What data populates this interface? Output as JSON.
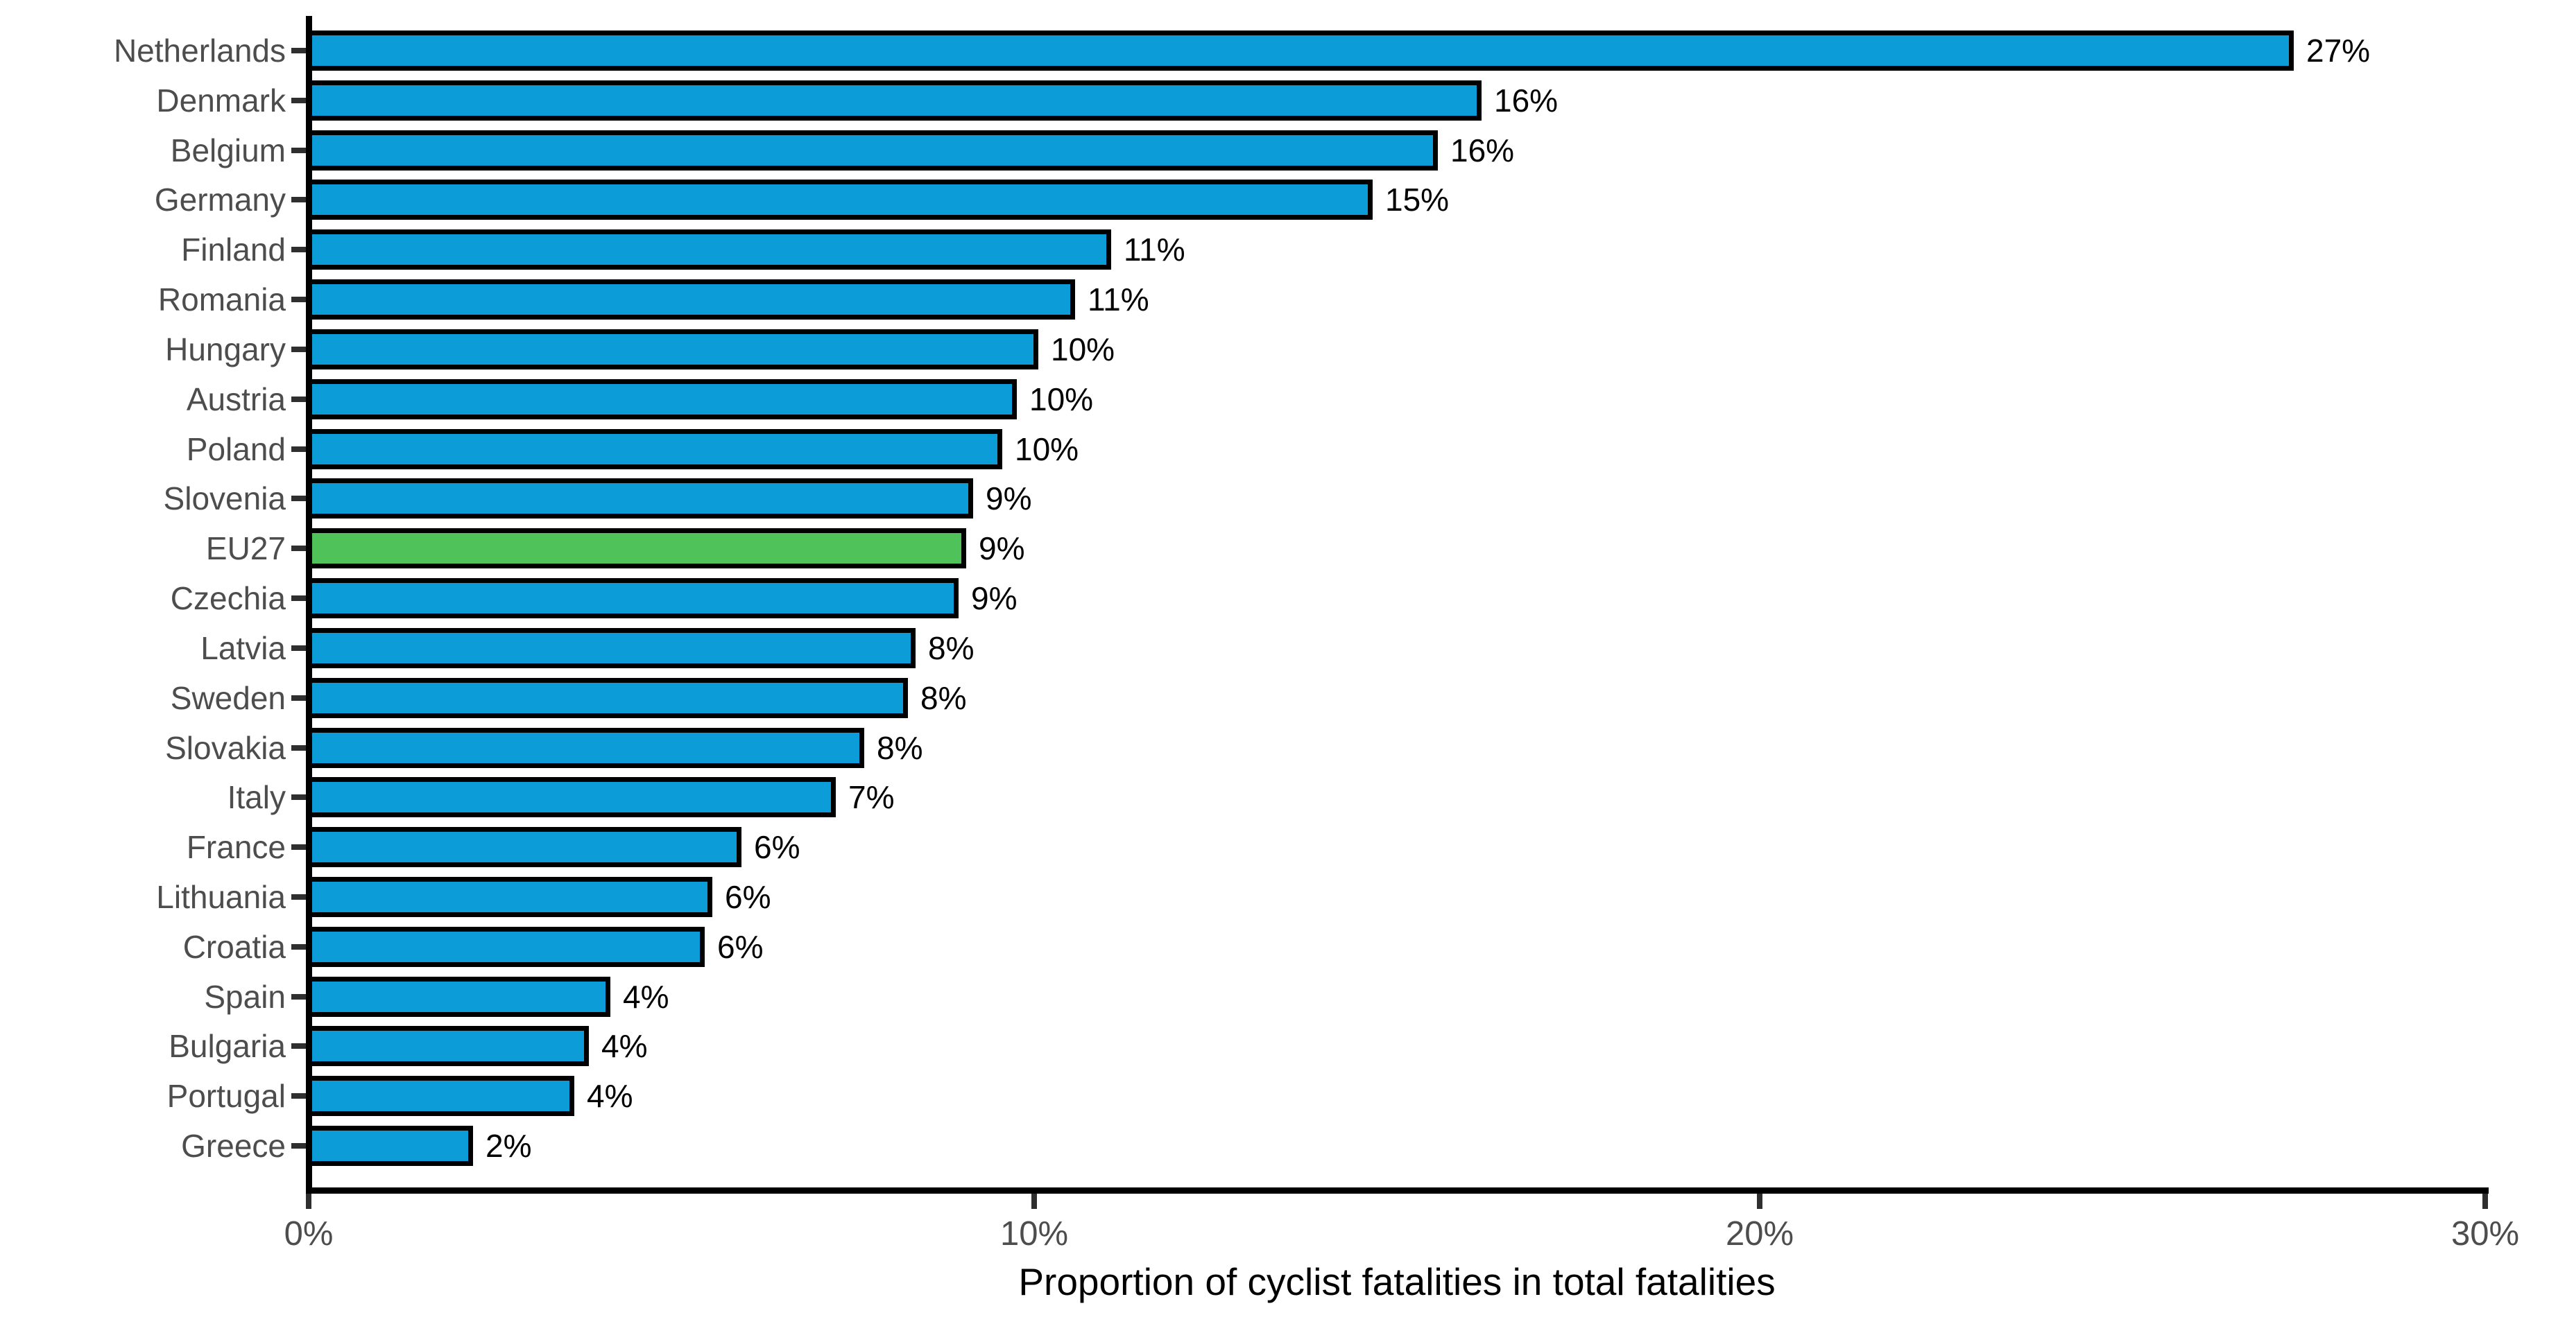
{
  "chart_data": {
    "type": "bar",
    "orientation": "horizontal",
    "title": "",
    "xlabel": "Proportion of cyclist fatalities in total fatalities",
    "ylabel": "",
    "xlim_pct": [
      0,
      30
    ],
    "grid": false,
    "legend": "none",
    "x_ticks": [
      {
        "label": "0%",
        "pct": 0
      },
      {
        "label": "10%",
        "pct": 10
      },
      {
        "label": "20%",
        "pct": 20
      },
      {
        "label": "30%",
        "pct": 30
      }
    ],
    "rows": [
      {
        "country": "Netherlands",
        "label": "27%",
        "pct": 27.4,
        "highlight": false
      },
      {
        "country": "Denmark",
        "label": "16%",
        "pct": 16.2,
        "highlight": false
      },
      {
        "country": "Belgium",
        "label": "16%",
        "pct": 15.6,
        "highlight": false
      },
      {
        "country": "Germany",
        "label": "15%",
        "pct": 14.7,
        "highlight": false
      },
      {
        "country": "Finland",
        "label": "11%",
        "pct": 11.1,
        "highlight": false
      },
      {
        "country": "Romania",
        "label": "11%",
        "pct": 10.6,
        "highlight": false
      },
      {
        "country": "Hungary",
        "label": "10%",
        "pct": 10.1,
        "highlight": false
      },
      {
        "country": "Austria",
        "label": "10%",
        "pct": 9.8,
        "highlight": false
      },
      {
        "country": "Poland",
        "label": "10%",
        "pct": 9.6,
        "highlight": false
      },
      {
        "country": "Slovenia",
        "label": "9%",
        "pct": 9.2,
        "highlight": false
      },
      {
        "country": "EU27",
        "label": "9%",
        "pct": 9.1,
        "highlight": true
      },
      {
        "country": "Czechia",
        "label": "9%",
        "pct": 9.0,
        "highlight": false
      },
      {
        "country": "Latvia",
        "label": "8%",
        "pct": 8.4,
        "highlight": false
      },
      {
        "country": "Sweden",
        "label": "8%",
        "pct": 8.3,
        "highlight": false
      },
      {
        "country": "Slovakia",
        "label": "8%",
        "pct": 7.7,
        "highlight": false
      },
      {
        "country": "Italy",
        "label": "7%",
        "pct": 7.3,
        "highlight": false
      },
      {
        "country": "France",
        "label": "6%",
        "pct": 6.0,
        "highlight": false
      },
      {
        "country": "Lithuania",
        "label": "6%",
        "pct": 5.6,
        "highlight": false
      },
      {
        "country": "Croatia",
        "label": "6%",
        "pct": 5.5,
        "highlight": false
      },
      {
        "country": "Spain",
        "label": "4%",
        "pct": 4.2,
        "highlight": false
      },
      {
        "country": "Bulgaria",
        "label": "4%",
        "pct": 3.9,
        "highlight": false
      },
      {
        "country": "Portugal",
        "label": "4%",
        "pct": 3.7,
        "highlight": false
      },
      {
        "country": "Greece",
        "label": "2%",
        "pct": 2.3,
        "highlight": false
      }
    ],
    "colors": {
      "bar": "#0c9cd8",
      "highlight_bar": "#4fc25a",
      "bar_outline": "#000000",
      "axis": "#000000",
      "tick": "#2f2f2f",
      "axis_label_text": "#4d4d4d",
      "value_label_text": "#000000"
    }
  }
}
